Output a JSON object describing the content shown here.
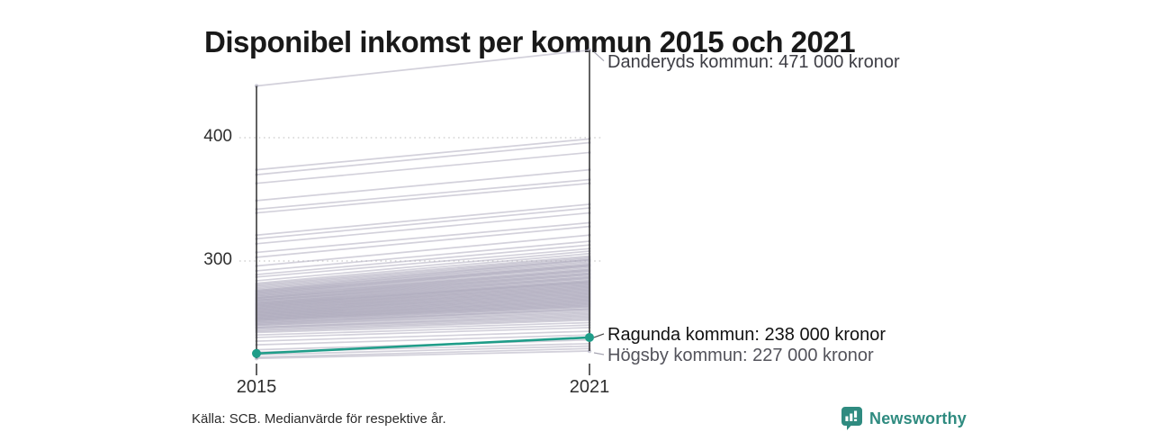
{
  "title": "Disponibel inkomst per kommun 2015 och 2021",
  "source_note": "Källa: SCB. Medianvärde för respektive år.",
  "branding": {
    "name": "Newsworthy",
    "color": "#2f8b80",
    "icon": "bar-chart-badge"
  },
  "chart_data": {
    "type": "line",
    "variant": "slope-chart",
    "x": [
      2015,
      2021
    ],
    "x_tick_labels": [
      "2015",
      "2021"
    ],
    "y_ticks": [
      400,
      300
    ],
    "y_tick_labels": [
      "400",
      "300"
    ],
    "y_unit_hint": "000 kronor (values shown in thousands)",
    "ylim": [
      215,
      480
    ],
    "grid": "dotted horizontal lines at 300 and 400",
    "legend": "none (direct labels at right)",
    "background_line_color": "#aeacbe",
    "highlight_color": "#1f9d89",
    "axis_color": "#3a3a3a",
    "labeled_series": [
      {
        "name": "Danderyds kommun",
        "values": [
          442,
          471
        ],
        "annotation": "Danderyds kommun: 471 000 kronor",
        "style": "background",
        "text_color": "#3d3d44",
        "callout_color": "#a6a5b2",
        "label_dy": 13
      },
      {
        "name": "Ragunda kommun",
        "values": [
          225,
          238
        ],
        "annotation": "Ragunda kommun: 238 000 kronor",
        "style": "highlight",
        "color": "#1f9d89",
        "text_color": "#121212",
        "callout_color": "#4a4a4a",
        "label_dy": -3,
        "dot_radius": 5
      },
      {
        "name": "Högsby kommun",
        "values": [
          221,
          227
        ],
        "annotation": "Högsby kommun: 227 000 kronor",
        "style": "background",
        "text_color": "#53535b",
        "callout_color": "#a6a5b2",
        "label_dy": 5
      }
    ],
    "background_series": [
      [
        374,
        399
      ],
      [
        370,
        396
      ],
      [
        363,
        388
      ],
      [
        349,
        374
      ],
      [
        342,
        366
      ],
      [
        339,
        363
      ],
      [
        321,
        346
      ],
      [
        318,
        343
      ],
      [
        314,
        339
      ],
      [
        307,
        331
      ],
      [
        303,
        328
      ],
      [
        296,
        321
      ],
      [
        292,
        316
      ],
      [
        289,
        313
      ],
      [
        287,
        310
      ],
      [
        284,
        308
      ],
      [
        282,
        306
      ],
      [
        281,
        304
      ],
      [
        280,
        303
      ],
      [
        279,
        302
      ],
      [
        278,
        301
      ],
      [
        277,
        301
      ],
      [
        276,
        300
      ],
      [
        276,
        299
      ],
      [
        275,
        298
      ],
      [
        275,
        297
      ],
      [
        274,
        297
      ],
      [
        274,
        296
      ],
      [
        273,
        296
      ],
      [
        273,
        295
      ],
      [
        272,
        294
      ],
      [
        272,
        293
      ],
      [
        271,
        293
      ],
      [
        271,
        292
      ],
      [
        270,
        292
      ],
      [
        270,
        291
      ],
      [
        270,
        290
      ],
      [
        269,
        290
      ],
      [
        269,
        289
      ],
      [
        268,
        289
      ],
      [
        268,
        288
      ],
      [
        268,
        287
      ],
      [
        267,
        287
      ],
      [
        267,
        286
      ],
      [
        266,
        286
      ],
      [
        266,
        285
      ],
      [
        266,
        284
      ],
      [
        265,
        284
      ],
      [
        265,
        283
      ],
      [
        265,
        283
      ],
      [
        264,
        283
      ],
      [
        264,
        282
      ],
      [
        264,
        282
      ],
      [
        263,
        281
      ],
      [
        263,
        281
      ],
      [
        263,
        280
      ],
      [
        262,
        280
      ],
      [
        262,
        279
      ],
      [
        262,
        279
      ],
      [
        261,
        278
      ],
      [
        261,
        278
      ],
      [
        261,
        277
      ],
      [
        260,
        277
      ],
      [
        260,
        276
      ],
      [
        260,
        276
      ],
      [
        259,
        275
      ],
      [
        259,
        275
      ],
      [
        259,
        274
      ],
      [
        258,
        274
      ],
      [
        258,
        273
      ],
      [
        258,
        273
      ],
      [
        257,
        272
      ],
      [
        257,
        272
      ],
      [
        257,
        271
      ],
      [
        256,
        271
      ],
      [
        256,
        270
      ],
      [
        256,
        270
      ],
      [
        255,
        269
      ],
      [
        255,
        269
      ],
      [
        255,
        268
      ],
      [
        254,
        268
      ],
      [
        254,
        267
      ],
      [
        254,
        267
      ],
      [
        253,
        266
      ],
      [
        253,
        266
      ],
      [
        253,
        265
      ],
      [
        252,
        265
      ],
      [
        252,
        264
      ],
      [
        252,
        264
      ],
      [
        251,
        263
      ],
      [
        251,
        263
      ],
      [
        250,
        262
      ],
      [
        250,
        261
      ],
      [
        249,
        261
      ],
      [
        249,
        260
      ],
      [
        248,
        259
      ],
      [
        248,
        258
      ],
      [
        247,
        257
      ],
      [
        246,
        256
      ],
      [
        246,
        255
      ],
      [
        245,
        254
      ],
      [
        244,
        253
      ],
      [
        243,
        252
      ],
      [
        242,
        250
      ],
      [
        240,
        248
      ],
      [
        238,
        246
      ],
      [
        235,
        243
      ],
      [
        232,
        240
      ],
      [
        228,
        236
      ],
      [
        226,
        233
      ],
      [
        224,
        231
      ],
      [
        222,
        229
      ]
    ]
  }
}
